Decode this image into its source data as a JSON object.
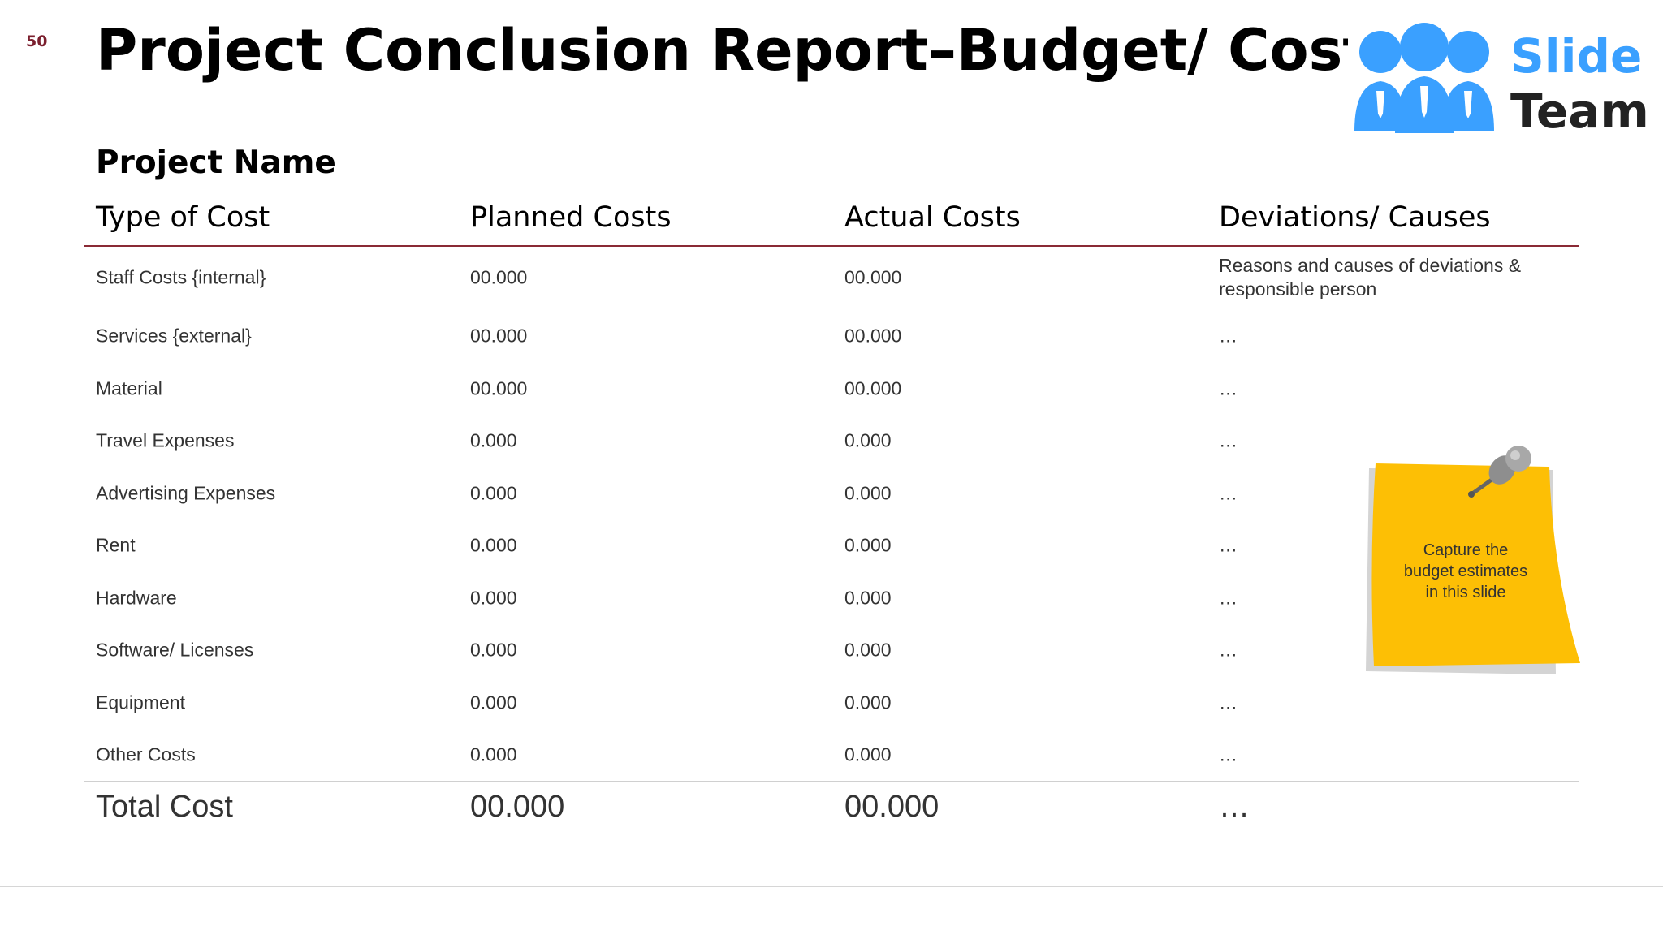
{
  "slide_number": "50",
  "title": "Project Conclusion Report–Budget/ Costs",
  "logo": {
    "word1": "Slide",
    "word2": "Team",
    "icon": "three-people-icon"
  },
  "project_name": "Project Name",
  "columns": [
    "Type of Cost",
    "Planned Costs",
    "Actual Costs",
    "Deviations/ Causes"
  ],
  "rows": [
    {
      "type": "Staff Costs {internal}",
      "planned": "00.000",
      "actual": "00.000",
      "deviation": "Reasons and causes of deviations & responsible person"
    },
    {
      "type": "Services {external}",
      "planned": "00.000",
      "actual": "00.000",
      "deviation": "…"
    },
    {
      "type": "Material",
      "planned": "00.000",
      "actual": "00.000",
      "deviation": "…"
    },
    {
      "type": "Travel Expenses",
      "planned": "0.000",
      "actual": "0.000",
      "deviation": "…"
    },
    {
      "type": "Advertising Expenses",
      "planned": "0.000",
      "actual": "0.000",
      "deviation": "…"
    },
    {
      "type": "Rent",
      "planned": "0.000",
      "actual": "0.000",
      "deviation": "…"
    },
    {
      "type": "Hardware",
      "planned": "0.000",
      "actual": "0.000",
      "deviation": "…"
    },
    {
      "type": "Software/ Licenses",
      "planned": "0.000",
      "actual": "0.000",
      "deviation": "…"
    },
    {
      "type": "Equipment",
      "planned": "0.000",
      "actual": "0.000",
      "deviation": "…"
    },
    {
      "type": "Other Costs",
      "planned": "0.000",
      "actual": "0.000",
      "deviation": "…"
    }
  ],
  "total": {
    "type": "Total Cost",
    "planned": "00.000",
    "actual": "00.000",
    "deviation": "…"
  },
  "sticky_note": {
    "text": "Capture the budget estimates in this slide",
    "icon": "pushpin-icon",
    "color": "#fdbf05"
  },
  "colors": {
    "header_rule": "#8a2a35",
    "logo_blue": "#3aa0ff",
    "slide_number": "#7b1f2e"
  }
}
